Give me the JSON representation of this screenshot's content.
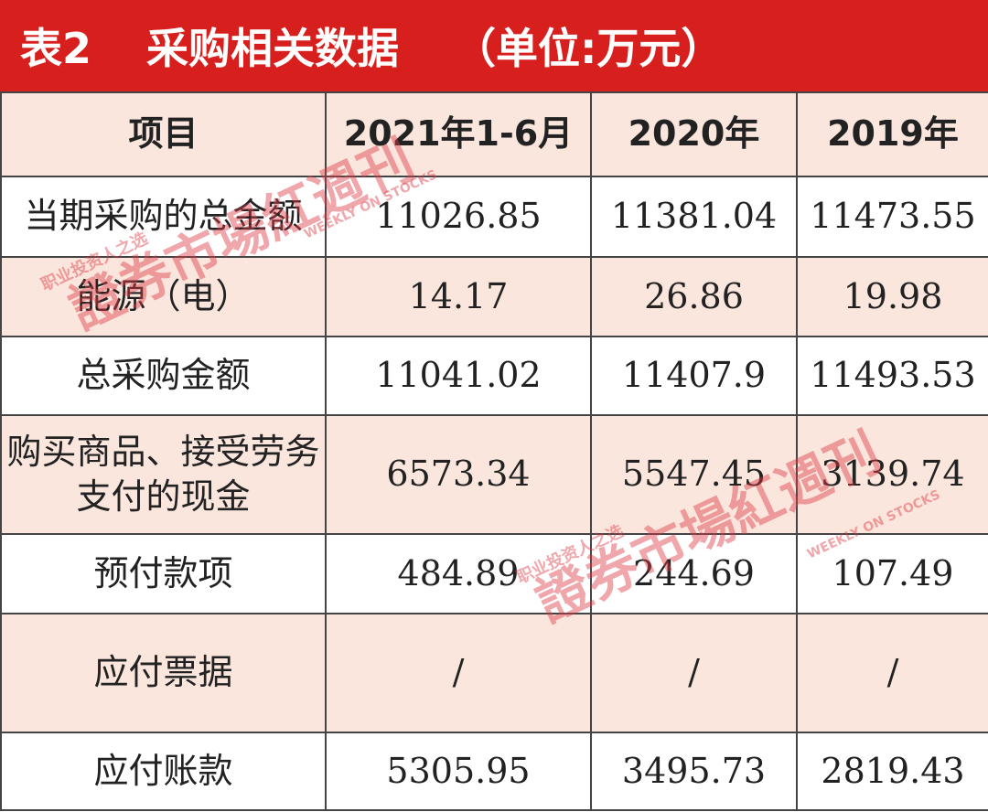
{
  "header": {
    "label": "表2",
    "title": "采购相关数据",
    "unit": "（单位:万元）"
  },
  "table": {
    "columns": [
      "项目",
      "2021年1-6月",
      "2020年",
      "2019年"
    ],
    "rows": [
      [
        "当期采购的总金额",
        "11026.85",
        "11381.04",
        "11473.55"
      ],
      [
        "能源（电）",
        "14.17",
        "26.86",
        "19.98"
      ],
      [
        "总采购金额",
        "11041.02",
        "11407.9",
        "11493.53"
      ],
      [
        "购买商品、接受劳务支付的现金",
        "6573.34",
        "5547.45",
        "3139.74"
      ],
      [
        "预付款项",
        "484.89",
        "244.69",
        "107.49"
      ],
      [
        "应付票据",
        "/",
        "/",
        "/"
      ],
      [
        "应付账款",
        "5305.95",
        "3495.73",
        "2819.43"
      ]
    ]
  },
  "watermark": {
    "brand": "證券市場紅週刊",
    "english": "WEEKLY ON STOCKS",
    "slogan": "职业投资人之选"
  }
}
